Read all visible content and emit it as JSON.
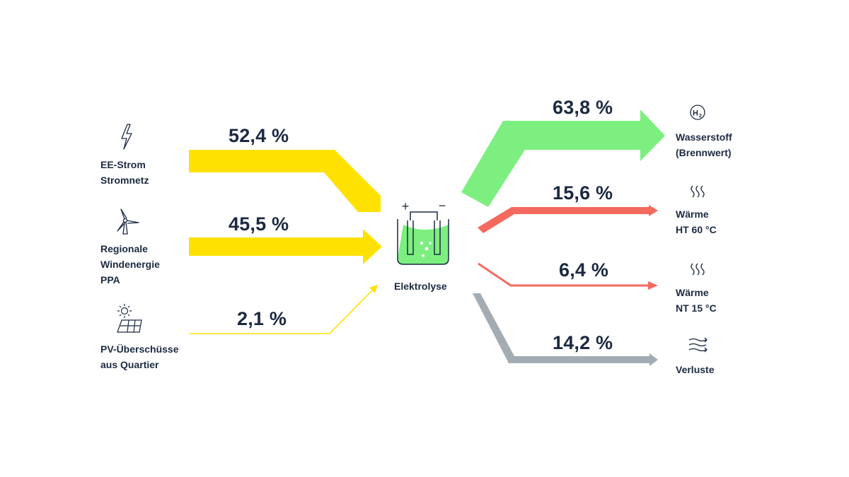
{
  "inputs": [
    {
      "label_lines": [
        "EE-Strom",
        "Stromnetz"
      ],
      "icon": "lightning-icon",
      "share": "52,4 %"
    },
    {
      "label_lines": [
        "Regionale",
        "Windenergie",
        "PPA"
      ],
      "icon": "wind-turbine-icon",
      "share": "45,5 %"
    },
    {
      "label_lines": [
        "PV-Überschüsse",
        "aus Quartier"
      ],
      "icon": "solar-panel-icon",
      "share": "2,1 %"
    }
  ],
  "center": {
    "label": "Elektrolyse",
    "icon": "electrolysis-icon",
    "plus": "+",
    "minus": "−"
  },
  "outputs": [
    {
      "label_lines": [
        "Wasserstoff",
        "(Brennwert)"
      ],
      "icon": "hydrogen-icon",
      "icon_text": "H",
      "icon_sub": "2",
      "share": "63,8 %"
    },
    {
      "label_lines": [
        "Wärme",
        "HT 60 °C"
      ],
      "icon": "heat-icon",
      "share": "15,6 %"
    },
    {
      "label_lines": [
        "Wärme",
        "NT 15 °C"
      ],
      "icon": "heat-icon",
      "share": "6,4 %"
    },
    {
      "label_lines": [
        "Verluste"
      ],
      "icon": "losses-icon",
      "share": "14,2 %"
    }
  ],
  "colors": {
    "electricity": "#ffe100",
    "hydrogen": "#7def80",
    "heat": "#f56a5e",
    "losses": "#a4acb3",
    "text": "#1b2a41",
    "liquid": "#7def80"
  }
}
